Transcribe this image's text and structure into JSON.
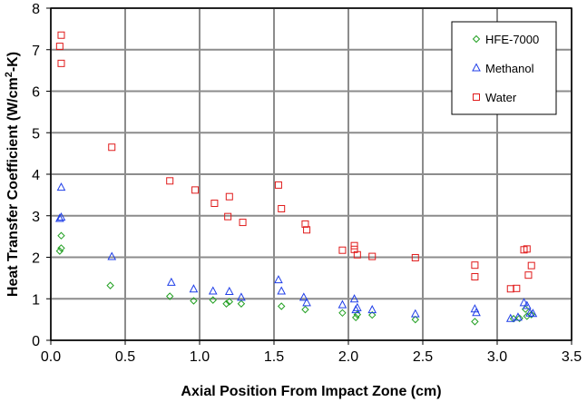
{
  "chart_data": {
    "type": "scatter",
    "title": "",
    "xlabel": "Axial Position From Impact Zone (cm)",
    "ylabel_main": "Heat Transfer Coefficient (W/cm",
    "ylabel_sup": "2",
    "ylabel_tail": "-K)",
    "xlim": [
      0,
      3.5
    ],
    "ylim": [
      0,
      8
    ],
    "x_ticks": [
      "0.0",
      "0.5",
      "1.0",
      "1.5",
      "2.0",
      "2.5",
      "3.0",
      "3.5"
    ],
    "y_ticks": [
      "0",
      "1",
      "2",
      "3",
      "4",
      "5",
      "6",
      "7",
      "8"
    ],
    "grid": true,
    "legend_position": "top-right",
    "series": [
      {
        "name": "HFE-7000",
        "marker": "diamond",
        "color": "#22a022",
        "points": [
          [
            0.06,
            2.15
          ],
          [
            0.07,
            2.22
          ],
          [
            0.07,
            2.52
          ],
          [
            0.4,
            1.32
          ],
          [
            0.8,
            1.06
          ],
          [
            0.96,
            0.95
          ],
          [
            1.09,
            0.97
          ],
          [
            1.18,
            0.88
          ],
          [
            1.2,
            0.93
          ],
          [
            1.28,
            0.88
          ],
          [
            1.55,
            0.82
          ],
          [
            1.71,
            0.74
          ],
          [
            1.96,
            0.66
          ],
          [
            2.05,
            0.55
          ],
          [
            2.06,
            0.62
          ],
          [
            2.16,
            0.61
          ],
          [
            2.45,
            0.5
          ],
          [
            2.85,
            0.45
          ],
          [
            3.11,
            0.52
          ],
          [
            3.15,
            0.53
          ],
          [
            3.19,
            0.75
          ],
          [
            3.2,
            0.58
          ],
          [
            3.23,
            0.62
          ]
        ]
      },
      {
        "name": "Methanol",
        "marker": "triangle",
        "color": "#1f3ee8",
        "points": [
          [
            0.06,
            2.93
          ],
          [
            0.07,
            2.96
          ],
          [
            0.07,
            3.68
          ],
          [
            0.41,
            2.01
          ],
          [
            0.81,
            1.39
          ],
          [
            0.96,
            1.23
          ],
          [
            1.09,
            1.18
          ],
          [
            1.2,
            1.17
          ],
          [
            1.28,
            1.03
          ],
          [
            1.53,
            1.45
          ],
          [
            1.55,
            1.18
          ],
          [
            1.7,
            1.03
          ],
          [
            1.72,
            0.9
          ],
          [
            1.96,
            0.85
          ],
          [
            2.04,
            0.99
          ],
          [
            2.05,
            0.73
          ],
          [
            2.06,
            0.78
          ],
          [
            2.16,
            0.73
          ],
          [
            2.45,
            0.63
          ],
          [
            2.85,
            0.75
          ],
          [
            2.86,
            0.66
          ],
          [
            3.09,
            0.52
          ],
          [
            3.14,
            0.55
          ],
          [
            3.18,
            0.9
          ],
          [
            3.2,
            0.83
          ],
          [
            3.22,
            0.65
          ],
          [
            3.24,
            0.64
          ]
        ]
      },
      {
        "name": "Water",
        "marker": "square",
        "color": "#e01a1a",
        "points": [
          [
            0.07,
            7.35
          ],
          [
            0.06,
            7.08
          ],
          [
            0.07,
            6.67
          ],
          [
            0.41,
            4.65
          ],
          [
            0.8,
            3.84
          ],
          [
            0.97,
            3.62
          ],
          [
            1.1,
            3.3
          ],
          [
            1.2,
            3.46
          ],
          [
            1.19,
            2.98
          ],
          [
            1.29,
            2.84
          ],
          [
            1.53,
            3.74
          ],
          [
            1.55,
            3.17
          ],
          [
            1.71,
            2.8
          ],
          [
            1.72,
            2.66
          ],
          [
            1.96,
            2.17
          ],
          [
            2.04,
            2.28
          ],
          [
            2.04,
            2.19
          ],
          [
            2.06,
            2.06
          ],
          [
            2.16,
            2.02
          ],
          [
            2.45,
            1.99
          ],
          [
            2.85,
            1.81
          ],
          [
            2.85,
            1.53
          ],
          [
            3.09,
            1.24
          ],
          [
            3.13,
            1.25
          ],
          [
            3.18,
            2.18
          ],
          [
            3.2,
            2.2
          ],
          [
            3.21,
            1.57
          ],
          [
            3.23,
            1.8
          ]
        ]
      }
    ]
  }
}
